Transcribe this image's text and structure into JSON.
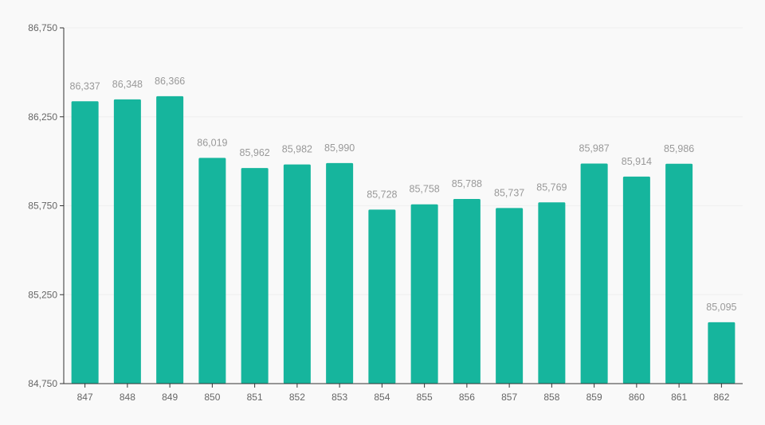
{
  "chart_data": {
    "type": "bar",
    "categories": [
      "847",
      "848",
      "849",
      "850",
      "851",
      "852",
      "853",
      "854",
      "855",
      "856",
      "857",
      "858",
      "859",
      "860",
      "861",
      "862"
    ],
    "values": [
      86337,
      86348,
      86366,
      86019,
      85962,
      85982,
      85990,
      85728,
      85758,
      85788,
      85737,
      85769,
      85987,
      85914,
      85986,
      85095
    ],
    "value_labels": [
      "86,337",
      "86,348",
      "86,366",
      "86,019",
      "85,962",
      "85,982",
      "85,990",
      "85,728",
      "85,758",
      "85,788",
      "85,737",
      "85,769",
      "85,987",
      "85,914",
      "85,986",
      "85,095"
    ],
    "ylim": [
      84750,
      86750
    ],
    "yticks": [
      84750,
      85250,
      85750,
      86250,
      86750
    ],
    "ytick_labels": [
      "84,750",
      "85,250",
      "85,750",
      "86,250",
      "86,750"
    ],
    "title": "",
    "xlabel": "",
    "ylabel": "",
    "grid": true,
    "legend": "none",
    "bar_color": "#16b59d"
  }
}
